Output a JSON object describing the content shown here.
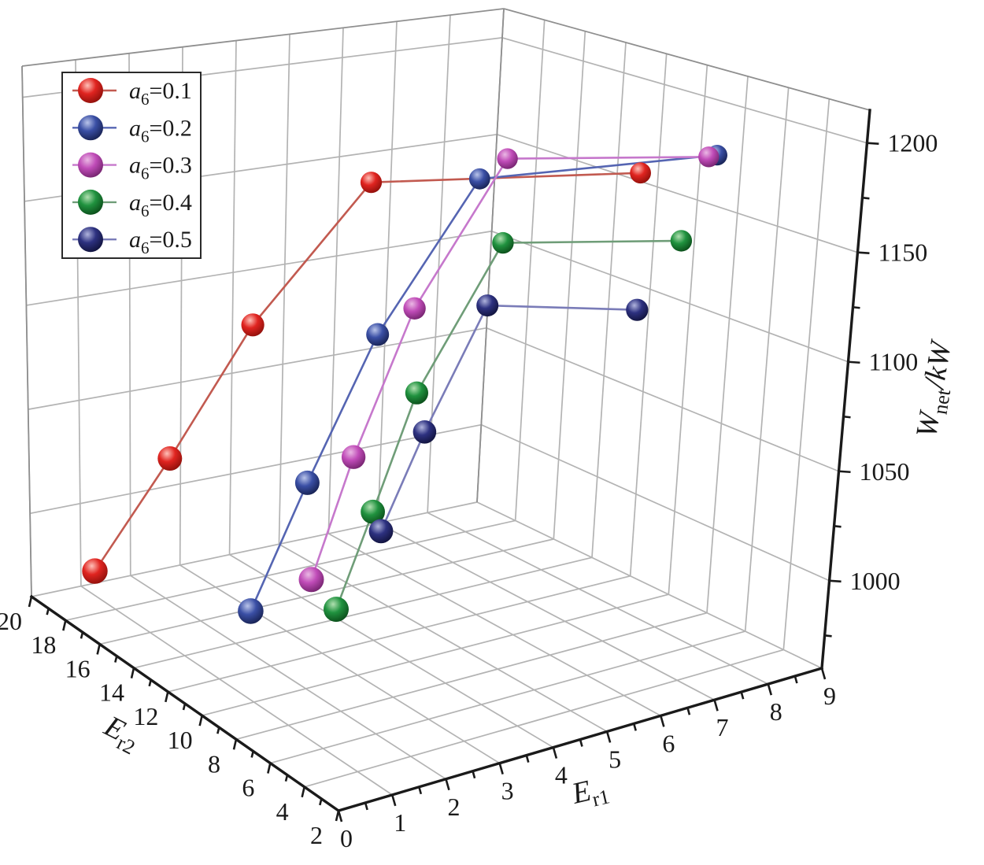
{
  "chart_data": {
    "type": "scatter",
    "subtype": "3d-scatter-lines",
    "title": "",
    "axes": {
      "x": {
        "label": "Er1",
        "label_main": "E",
        "label_sub": "r1",
        "range": [
          0,
          9
        ],
        "major_ticks": [
          0,
          1,
          2,
          3,
          4,
          5,
          6,
          7,
          8,
          9
        ],
        "minor_step": 0.5,
        "grid": true
      },
      "y": {
        "label": "Er2",
        "label_main": "E",
        "label_sub": "r2",
        "range": [
          2,
          20
        ],
        "major_ticks": [
          2,
          4,
          6,
          8,
          10,
          12,
          14,
          16,
          18,
          20
        ],
        "minor_step": 1,
        "grid": true
      },
      "z": {
        "label": "Wnet/kW",
        "label_main": "W",
        "label_sub": "net",
        "label_rest": "/kW",
        "range": [
          960,
          1215
        ],
        "major_ticks": [
          1000,
          1050,
          1100,
          1150,
          1200
        ],
        "minor_ticks": [
          975,
          1025,
          1075,
          1125,
          1175
        ],
        "grid": true
      }
    },
    "legend": {
      "position": "top-left",
      "entries_note": "labels mirror series names"
    },
    "series": [
      {
        "name": "a6=0.1",
        "label_var": "a",
        "label_sub": "6",
        "label_rest": "=0.1",
        "color": "#e02420",
        "color_light": "#ffc0b8",
        "color_dark": "#8c0f0a",
        "line_color": "#c25a50",
        "points": [
          [
            0.6,
            18,
            980
          ],
          [
            2.1,
            18,
            1026
          ],
          [
            3.7,
            18,
            1083
          ],
          [
            5.9,
            18,
            1144
          ],
          [
            8.5,
            11.5,
            1160
          ]
        ]
      },
      {
        "name": "a6=0.2",
        "label_var": "a",
        "label_sub": "6",
        "label_rest": "=0.2",
        "color": "#3a4fa5",
        "color_light": "#b9c4ea",
        "color_dark": "#16204f",
        "line_color": "#5565b2",
        "points": [
          [
            2.3,
            14,
            973
          ],
          [
            3.4,
            14,
            1026
          ],
          [
            4.7,
            14,
            1089
          ],
          [
            6.5,
            14,
            1156
          ],
          [
            9,
            9.2,
            1174
          ]
        ]
      },
      {
        "name": "a6=0.3",
        "label_var": "a",
        "label_sub": "6",
        "label_rest": "=0.3",
        "color": "#c04cb8",
        "color_light": "#eab8e4",
        "color_dark": "#71226b",
        "line_color": "#c678cc",
        "points": [
          [
            2.8,
            12,
            994
          ],
          [
            3.6,
            12,
            1045
          ],
          [
            4.7,
            12,
            1108
          ],
          [
            6.3,
            12,
            1172
          ],
          [
            9,
            9.6,
            1172
          ]
        ]
      },
      {
        "name": "a6=0.4",
        "label_var": "a",
        "label_sub": "6",
        "label_rest": "=0.4",
        "color": "#20923f",
        "color_light": "#b0e0b0",
        "color_dark": "#0a4a18",
        "line_color": "#6f9d78",
        "points": [
          [
            2.6,
            10,
            991
          ],
          [
            3.3,
            10,
            1030
          ],
          [
            4.1,
            10,
            1079
          ],
          [
            5.6,
            10,
            1141
          ],
          [
            8.3,
            8.7,
            1137
          ]
        ]
      },
      {
        "name": "a6=0.5",
        "label_var": "a",
        "label_sub": "6",
        "label_rest": "=0.5",
        "color": "#2d3180",
        "color_light": "#b0b4dd",
        "color_dark": "#10123a",
        "line_color": "#7a7cb8",
        "points": [
          [
            2.8,
            8,
            1032
          ],
          [
            3.6,
            8,
            1071
          ],
          [
            4.7,
            8,
            1122
          ],
          [
            7.0,
            7.0,
            1115
          ]
        ]
      }
    ]
  }
}
